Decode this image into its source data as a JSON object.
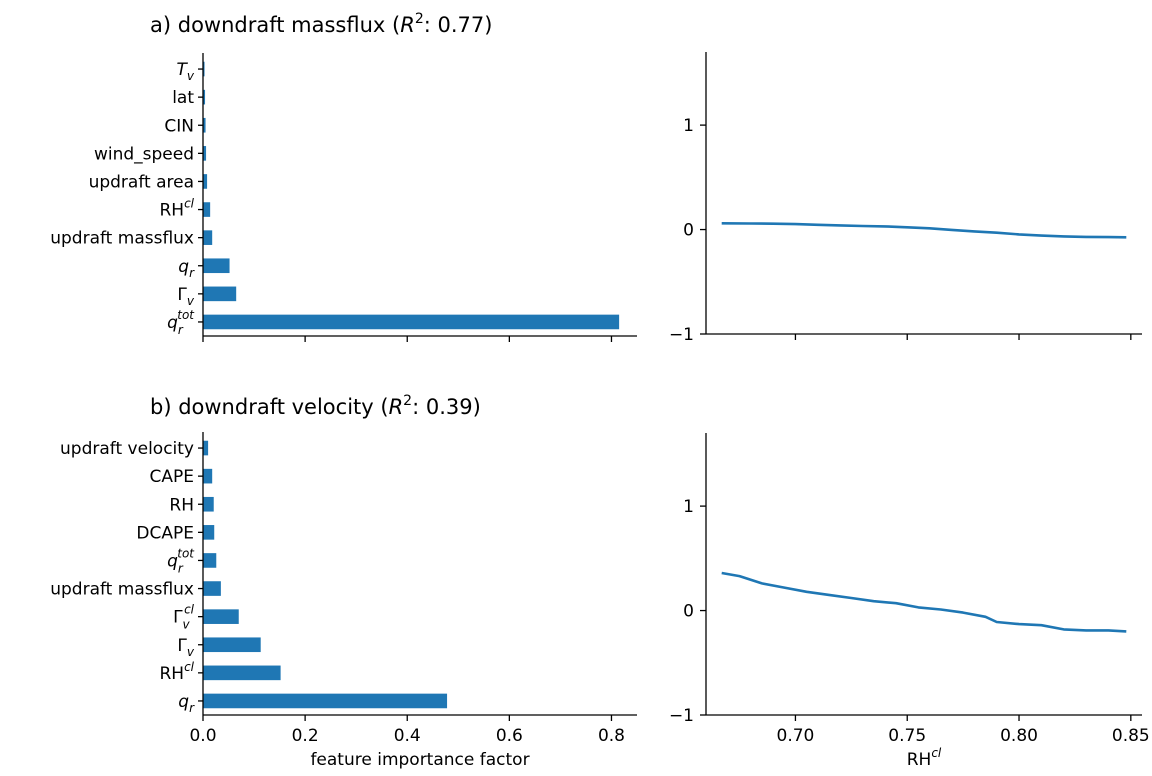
{
  "colors": {
    "bar": "#1f77b4",
    "line": "#1f77b4",
    "axis": "#000000"
  },
  "chart_data": [
    {
      "id": "a-importance",
      "type": "bar",
      "orientation": "horizontal",
      "title": "a) downdraft massflux (R²: 0.77)",
      "title_parts": {
        "prefix": "a) downdraft massflux (",
        "r": "R",
        "sup": "2",
        "suffix": ": 0.77)"
      },
      "xlabel": "",
      "xlim": [
        0,
        0.85
      ],
      "xticks": [
        0.0,
        0.2,
        0.4,
        0.6,
        0.8
      ],
      "xtick_labels_visible": false,
      "categories": [
        {
          "text": "q",
          "italic": true,
          "sub": "r",
          "sup": "tot"
        },
        {
          "text": "Γ",
          "italic": false,
          "sub": "v",
          "sup": ""
        },
        {
          "text": "q",
          "italic": true,
          "sub": "r",
          "sup": ""
        },
        {
          "text": "updraft massflux",
          "italic": false,
          "sub": "",
          "sup": ""
        },
        {
          "text": "RH",
          "italic": false,
          "sub": "",
          "sup": "cl"
        },
        {
          "text": "updraft area",
          "italic": false,
          "sub": "",
          "sup": ""
        },
        {
          "text": "wind_speed",
          "italic": false,
          "sub": "",
          "sup": ""
        },
        {
          "text": "CIN",
          "italic": false,
          "sub": "",
          "sup": ""
        },
        {
          "text": "lat",
          "italic": false,
          "sub": "",
          "sup": ""
        },
        {
          "text": "T",
          "italic": true,
          "sub": "v",
          "sup": ""
        }
      ],
      "values": [
        0.815,
        0.065,
        0.052,
        0.018,
        0.014,
        0.008,
        0.006,
        0.005,
        0.004,
        0.003
      ]
    },
    {
      "id": "a-dependence",
      "type": "line",
      "title": "",
      "xlabel": "",
      "xlim": [
        0.66,
        0.855
      ],
      "xticks": [
        0.7,
        0.75,
        0.8,
        0.85
      ],
      "xtick_labels_visible": false,
      "ylim": [
        -1,
        1.7
      ],
      "yticks": [
        -1,
        0,
        1
      ],
      "ytick_labels": [
        "−1",
        "0",
        "1"
      ],
      "x": [
        0.667,
        0.68,
        0.69,
        0.7,
        0.71,
        0.72,
        0.73,
        0.74,
        0.75,
        0.76,
        0.77,
        0.78,
        0.79,
        0.8,
        0.81,
        0.82,
        0.83,
        0.84,
        0.848
      ],
      "y": [
        0.06,
        0.058,
        0.056,
        0.052,
        0.046,
        0.04,
        0.034,
        0.03,
        0.022,
        0.012,
        -0.003,
        -0.018,
        -0.03,
        -0.046,
        -0.058,
        -0.066,
        -0.07,
        -0.072,
        -0.074
      ]
    },
    {
      "id": "b-importance",
      "type": "bar",
      "orientation": "horizontal",
      "title": "b) downdraft velocity (R²: 0.39)",
      "title_parts": {
        "prefix": "b) downdraft velocity (",
        "r": "R",
        "sup": "2",
        "suffix": ": 0.39)"
      },
      "xlabel": "feature importance factor",
      "xlim": [
        0,
        0.85
      ],
      "xticks": [
        0.0,
        0.2,
        0.4,
        0.6,
        0.8
      ],
      "xtick_labels": [
        "0.0",
        "0.2",
        "0.4",
        "0.6",
        "0.8"
      ],
      "xtick_labels_visible": true,
      "categories": [
        {
          "text": "q",
          "italic": true,
          "sub": "r",
          "sup": ""
        },
        {
          "text": "RH",
          "italic": false,
          "sub": "",
          "sup": "cl"
        },
        {
          "text": "Γ",
          "italic": false,
          "sub": "v",
          "sup": ""
        },
        {
          "text": "Γ",
          "italic": false,
          "sub": "v",
          "sup": "cl"
        },
        {
          "text": "updraft massflux",
          "italic": false,
          "sub": "",
          "sup": ""
        },
        {
          "text": "q",
          "italic": true,
          "sub": "r",
          "sup": "tot"
        },
        {
          "text": "DCAPE",
          "italic": false,
          "sub": "",
          "sup": ""
        },
        {
          "text": "RH",
          "italic": false,
          "sub": "",
          "sup": ""
        },
        {
          "text": "CAPE",
          "italic": false,
          "sub": "",
          "sup": ""
        },
        {
          "text": "updraft velocity",
          "italic": false,
          "sub": "",
          "sup": ""
        }
      ],
      "values": [
        0.478,
        0.152,
        0.113,
        0.07,
        0.035,
        0.026,
        0.022,
        0.021,
        0.018,
        0.01
      ]
    },
    {
      "id": "b-dependence",
      "type": "line",
      "title": "",
      "xlabel": "RH^cl",
      "xlabel_parts": {
        "text": "RH",
        "sup": "cl"
      },
      "xlim": [
        0.66,
        0.855
      ],
      "xticks": [
        0.7,
        0.75,
        0.8,
        0.85
      ],
      "xtick_labels": [
        "0.70",
        "0.75",
        "0.80",
        "0.85"
      ],
      "xtick_labels_visible": true,
      "ylim": [
        -1,
        1.7
      ],
      "yticks": [
        -1,
        0,
        1
      ],
      "ytick_labels": [
        "−1",
        "0",
        "1"
      ],
      "x": [
        0.667,
        0.675,
        0.685,
        0.695,
        0.705,
        0.715,
        0.725,
        0.735,
        0.745,
        0.755,
        0.765,
        0.775,
        0.785,
        0.79,
        0.8,
        0.81,
        0.82,
        0.83,
        0.84,
        0.848
      ],
      "y": [
        0.36,
        0.33,
        0.26,
        0.22,
        0.18,
        0.15,
        0.12,
        0.09,
        0.07,
        0.03,
        0.01,
        -0.02,
        -0.06,
        -0.11,
        -0.13,
        -0.14,
        -0.18,
        -0.19,
        -0.19,
        -0.2
      ]
    }
  ]
}
